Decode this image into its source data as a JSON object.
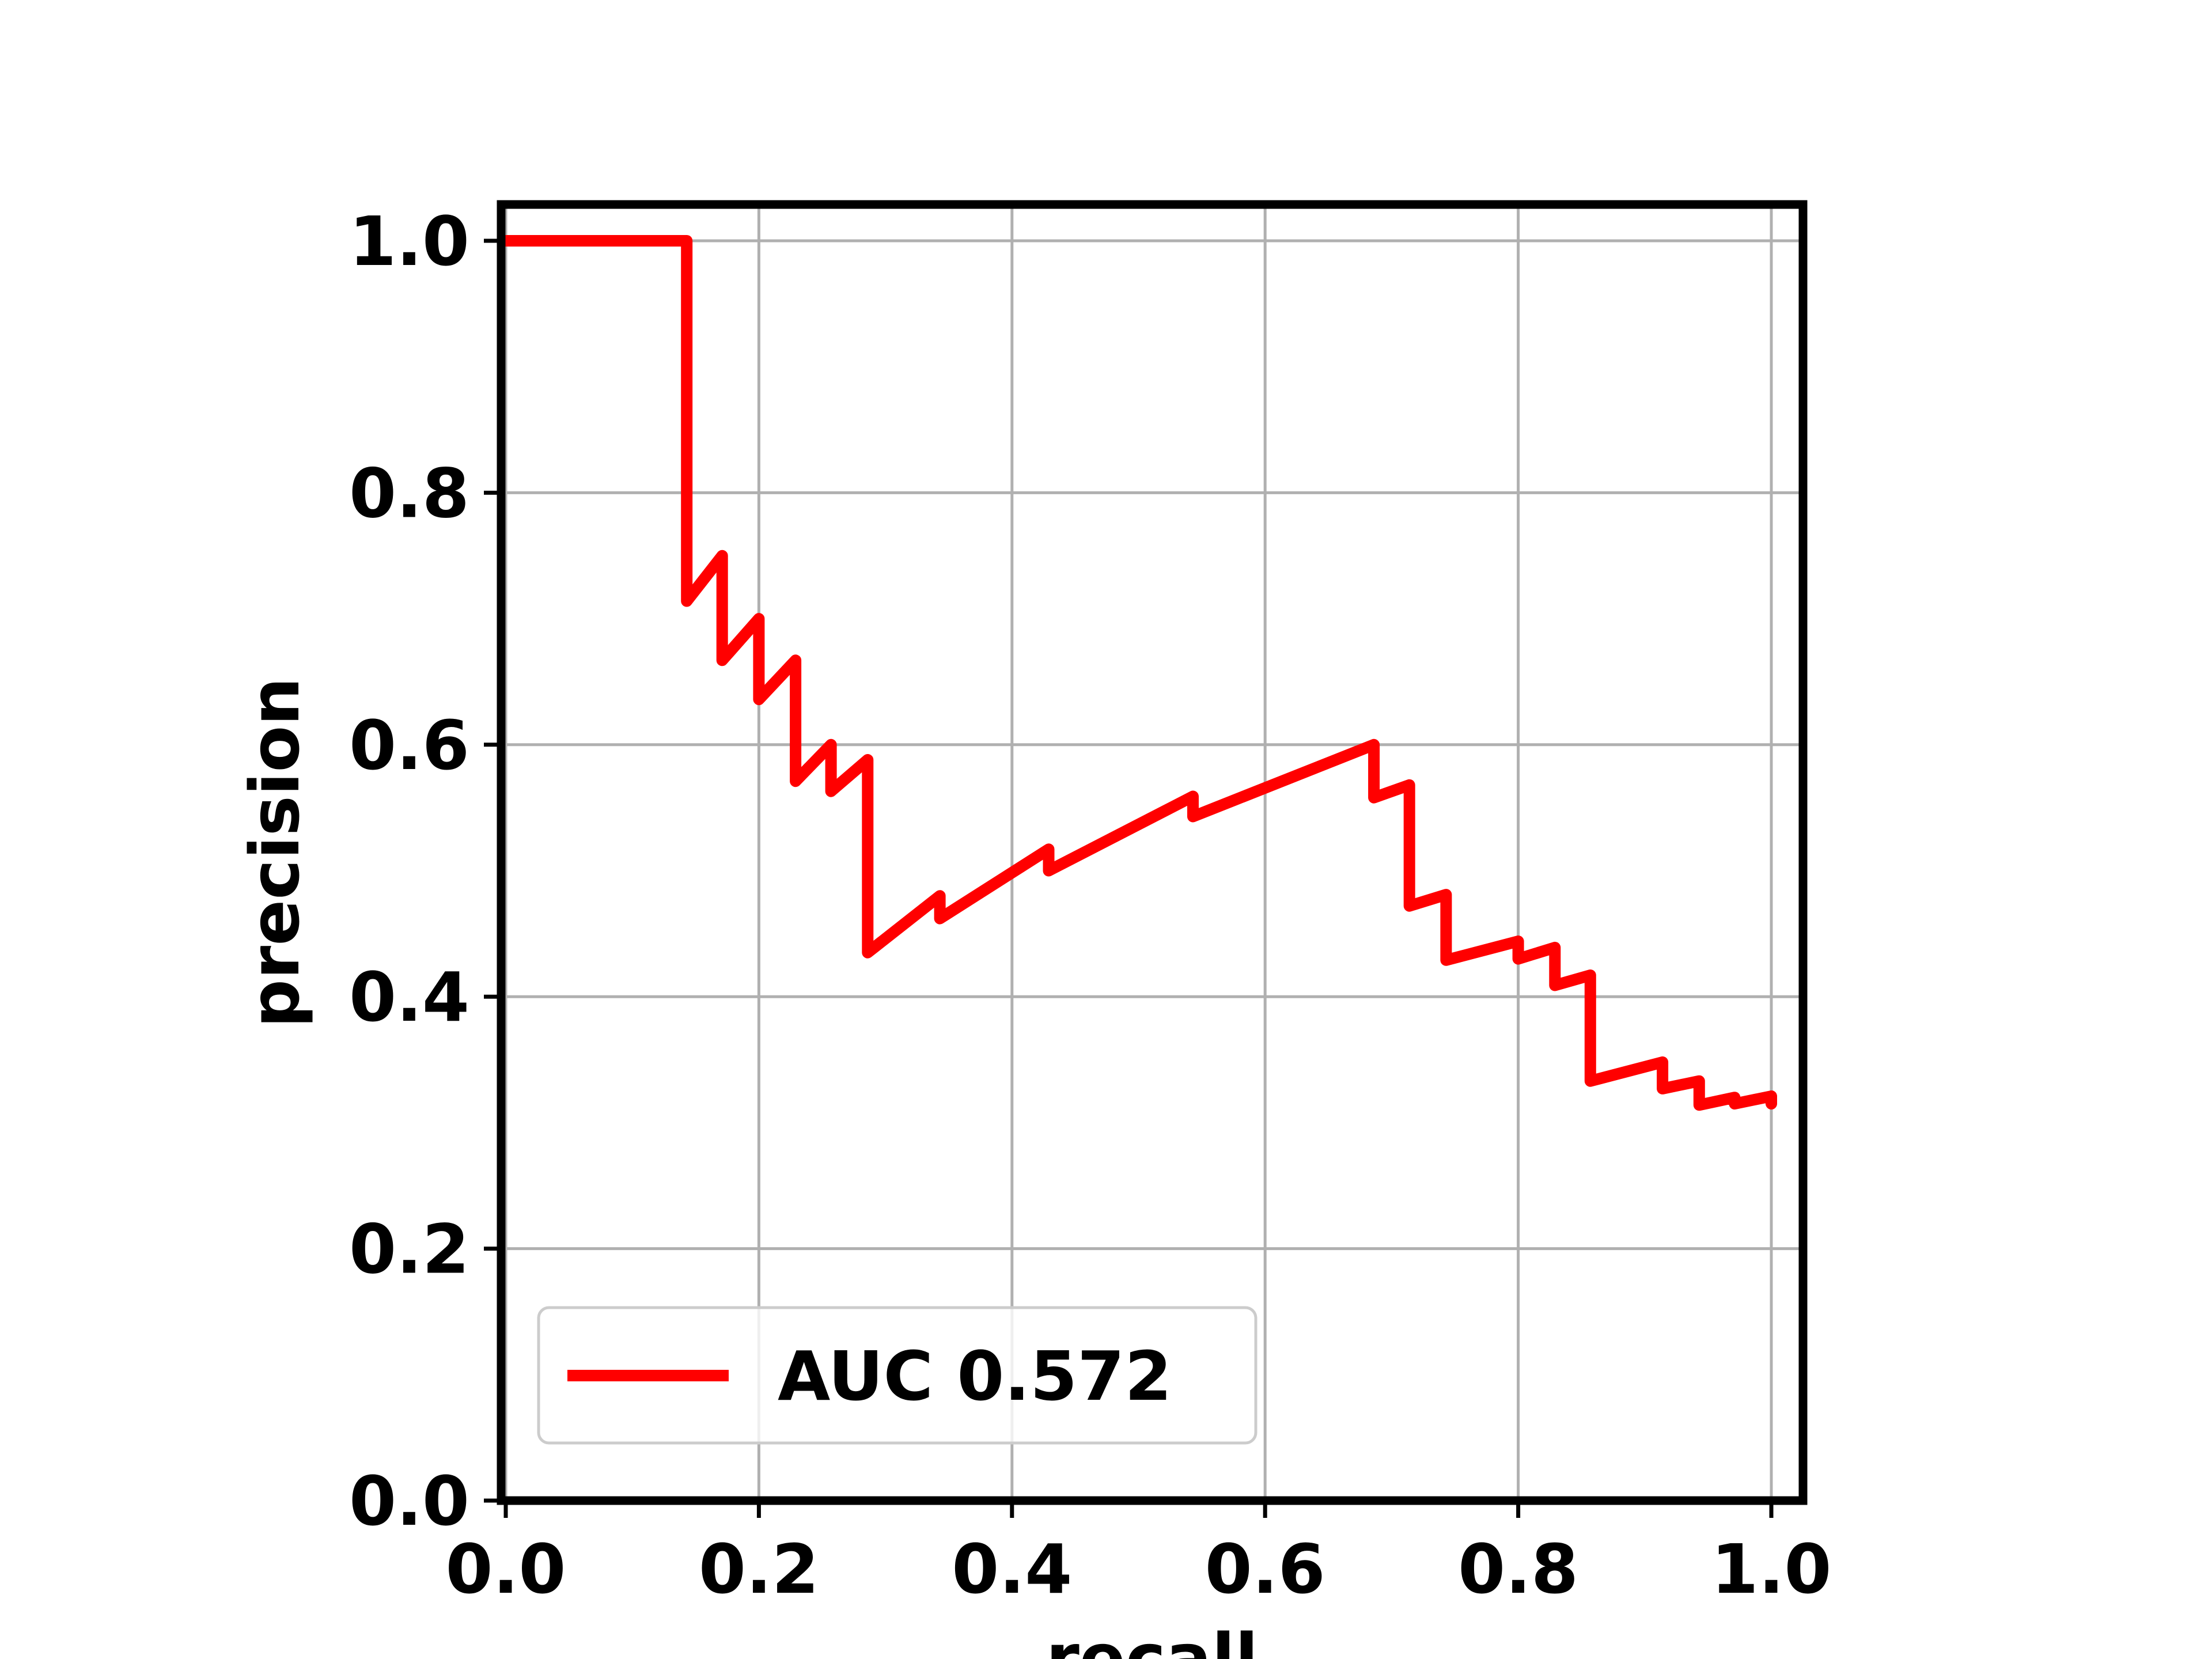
{
  "chart_data": {
    "type": "line",
    "title": "",
    "xlabel": "recall",
    "ylabel": "precision",
    "xlim": [
      0.0,
      1.0
    ],
    "ylim": [
      0.0,
      1.0
    ],
    "xticks": [
      "0.0",
      "0.2",
      "0.4",
      "0.6",
      "0.8",
      "1.0"
    ],
    "yticks": [
      "0.0",
      "0.2",
      "0.4",
      "0.6",
      "0.8",
      "1.0"
    ],
    "grid": true,
    "legend_position": "lower left",
    "series": [
      {
        "name": "AUC 0.572",
        "color": "#ff0000",
        "x": [
          0.0,
          0.143,
          0.143,
          0.171,
          0.171,
          0.2,
          0.2,
          0.229,
          0.229,
          0.257,
          0.257,
          0.286,
          0.286,
          0.343,
          0.343,
          0.429,
          0.429,
          0.543,
          0.543,
          0.686,
          0.686,
          0.714,
          0.714,
          0.743,
          0.743,
          0.8,
          0.8,
          0.829,
          0.829,
          0.857,
          0.857,
          0.914,
          0.914,
          0.943,
          0.943,
          0.971,
          0.971,
          1.0,
          1.0
        ],
        "y": [
          1.0,
          1.0,
          0.714,
          0.75,
          0.667,
          0.7,
          0.636,
          0.667,
          0.571,
          0.6,
          0.563,
          0.588,
          0.435,
          0.48,
          0.462,
          0.517,
          0.5,
          0.559,
          0.543,
          0.6,
          0.558,
          0.568,
          0.472,
          0.481,
          0.429,
          0.444,
          0.43,
          0.439,
          0.409,
          0.417,
          0.333,
          0.348,
          0.327,
          0.333,
          0.314,
          0.32,
          0.315,
          0.321,
          0.315
        ]
      }
    ]
  }
}
